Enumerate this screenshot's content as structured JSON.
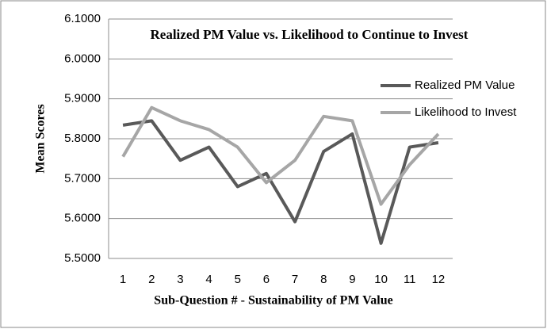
{
  "chart_data": {
    "type": "line",
    "title": "Realized PM Value vs. Likelihood to Continue to Invest",
    "x_label": "Sub-Question # - Sustainability of PM Value",
    "y_label": "Mean Scores",
    "categories": [
      "1",
      "2",
      "3",
      "4",
      "5",
      "6",
      "7",
      "8",
      "9",
      "10",
      "11",
      "12"
    ],
    "series": [
      {
        "name": "Realized PM Value",
        "color": "#595959",
        "values": [
          5.834,
          5.845,
          5.746,
          5.779,
          5.68,
          5.713,
          5.592,
          5.768,
          5.812,
          5.538,
          5.779,
          5.79
        ]
      },
      {
        "name": "Likelihood to Invest",
        "color": "#a6a6a6",
        "values": [
          5.755,
          5.878,
          5.845,
          5.823,
          5.779,
          5.69,
          5.746,
          5.856,
          5.845,
          5.636,
          5.735,
          5.812
        ]
      }
    ],
    "ylim": [
      5.5,
      6.1
    ],
    "yticks": [
      {
        "value": 5.5,
        "label": "5.5000"
      },
      {
        "value": 5.6,
        "label": "5.6000"
      },
      {
        "value": 5.7,
        "label": "5.7000"
      },
      {
        "value": 5.8,
        "label": "5.8000"
      },
      {
        "value": 5.9,
        "label": "5.9000"
      },
      {
        "value": 6.0,
        "label": "6.0000"
      },
      {
        "value": 6.1,
        "label": "6.1000"
      }
    ],
    "grid": true,
    "legend": "right"
  }
}
